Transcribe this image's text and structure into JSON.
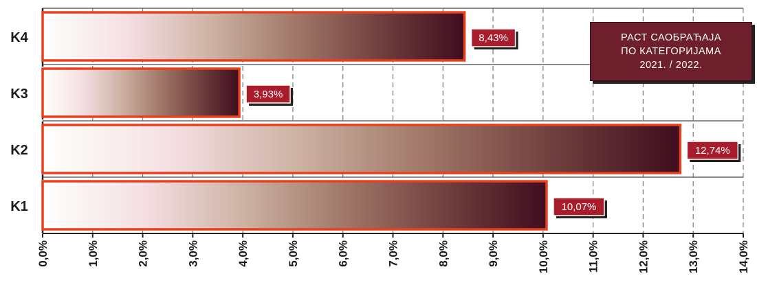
{
  "chart_data": {
    "type": "bar",
    "orientation": "horizontal",
    "categories": [
      "K4",
      "K3",
      "K2",
      "K1"
    ],
    "values": [
      8.43,
      3.93,
      12.74,
      10.07
    ],
    "value_labels": [
      "8,43%",
      "3,93%",
      "12,74%",
      "10,07%"
    ],
    "title_lines": [
      "РАСТ САОБРАЋАЈА",
      "ПО КАТЕГОРИЈАМА",
      "2021. / 2022."
    ],
    "xlabel": "",
    "ylabel": "",
    "xlim": [
      0,
      14
    ],
    "x_ticks": [
      0,
      1,
      2,
      3,
      4,
      5,
      6,
      7,
      8,
      9,
      10,
      11,
      12,
      13,
      14
    ],
    "x_tick_labels": [
      "0,0%",
      "1,0%",
      "2,0%",
      "3,0%",
      "4,0%",
      "5,0%",
      "6,0%",
      "7,0%",
      "8,0%",
      "9,0%",
      "10,0%",
      "11,0%",
      "12,0%",
      "13,0%",
      "14,0%"
    ],
    "grid": true,
    "legend": "none"
  },
  "colors": {
    "bar_dark": "#4a1020",
    "bar_border": "#e8401c",
    "label_bg": "#a81c2c",
    "title_bg": "#6e1f2c",
    "grid": "#777777"
  }
}
